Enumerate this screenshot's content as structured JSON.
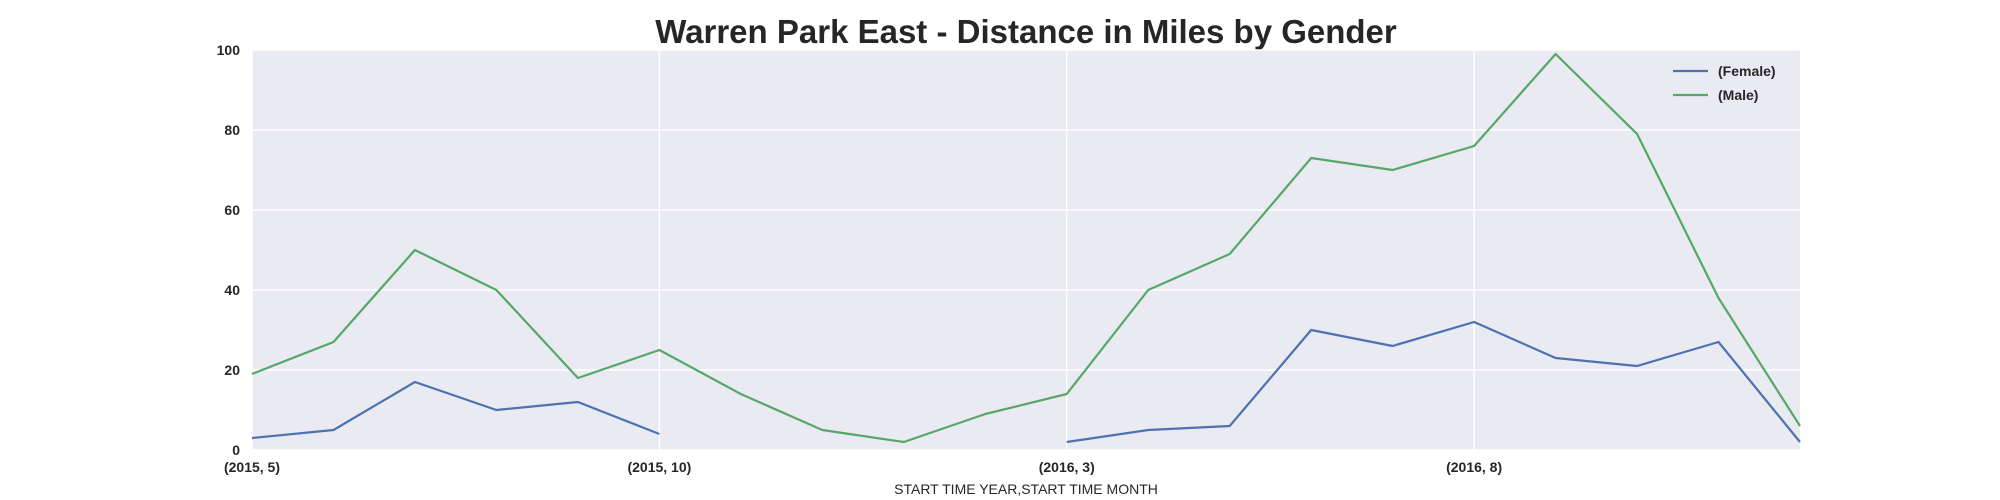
{
  "chart_data": {
    "type": "line",
    "title": "Warren Park East - Distance in Miles by Gender",
    "xlabel": "START TIME YEAR,START TIME MONTH",
    "ylabel": "",
    "ylim": [
      0,
      100
    ],
    "yticks": [
      0,
      20,
      40,
      60,
      80,
      100
    ],
    "x": [
      "(2015, 5)",
      "(2015, 6)",
      "(2015, 7)",
      "(2015, 8)",
      "(2015, 9)",
      "(2015, 10)",
      "(2015, 11)",
      "(2015, 12)",
      "(2016, 1)",
      "(2016, 2)",
      "(2016, 3)",
      "(2016, 4)",
      "(2016, 5)",
      "(2016, 6)",
      "(2016, 7)",
      "(2016, 8)",
      "(2016, 9)",
      "(2016, 10)",
      "(2016, 11)",
      "(2016, 12)"
    ],
    "xticks": [
      "(2015, 5)",
      "(2015, 10)",
      "(2016, 3)",
      "(2016, 8)"
    ],
    "grid": true,
    "legend_position": "top-right",
    "series": [
      {
        "name": "(Female)",
        "color": "#4c72b0",
        "values": [
          3,
          5,
          17,
          10,
          12,
          4,
          null,
          null,
          null,
          null,
          2,
          5,
          6,
          30,
          26,
          32,
          23,
          21,
          27,
          2
        ]
      },
      {
        "name": "(Male)",
        "color": "#55a868",
        "values": [
          19,
          27,
          50,
          40,
          18,
          25,
          14,
          5,
          2,
          9,
          14,
          40,
          49,
          73,
          70,
          76,
          99,
          79,
          38,
          6
        ]
      }
    ]
  }
}
